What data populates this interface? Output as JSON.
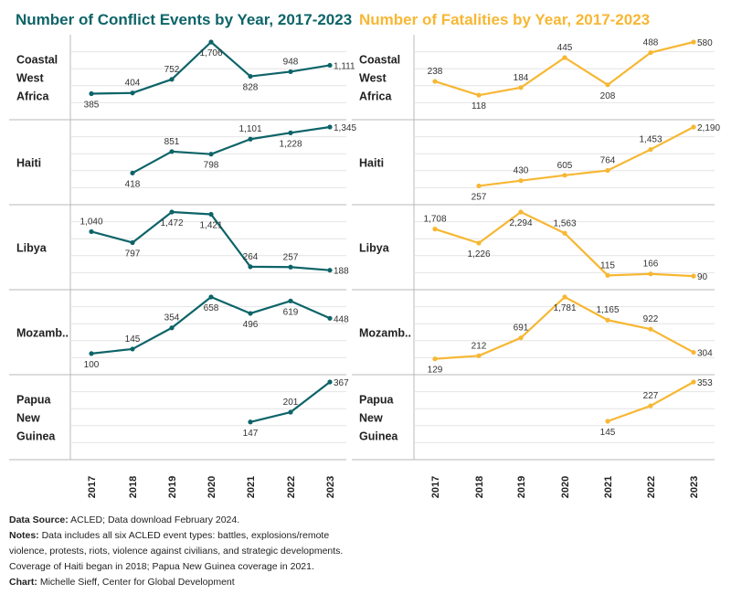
{
  "colors": {
    "events": "#0d6468",
    "fatalities": "#f7b733",
    "grid": "#e4e4e4",
    "divider": "#b8b8b8"
  },
  "chart_data": [
    {
      "type": "line",
      "title": "Number of Conflict Events by Year, 2017-2023",
      "x": [
        "2017",
        "2018",
        "2019",
        "2020",
        "2021",
        "2022",
        "2023"
      ],
      "series": [
        {
          "name": "Coastal West Africa",
          "values": [
            385,
            404,
            752,
            1706,
            828,
            948,
            1111
          ],
          "labels": [
            "385",
            "404",
            "752",
            "1,706",
            "828",
            "948",
            "1,111"
          ]
        },
        {
          "name": "Haiti",
          "values": [
            null,
            418,
            851,
            798,
            1101,
            1228,
            1345
          ],
          "labels": [
            "",
            "418",
            "851",
            "798",
            "1,101",
            "1,228",
            "1,345"
          ]
        },
        {
          "name": "Libya",
          "values": [
            1040,
            797,
            1472,
            1421,
            264,
            257,
            188
          ],
          "labels": [
            "1,040",
            "797",
            "1,472",
            "1,421",
            "264",
            "257",
            "188"
          ]
        },
        {
          "name": "Mozamb..",
          "values": [
            100,
            145,
            354,
            658,
            496,
            619,
            448
          ],
          "labels": [
            "100",
            "145",
            "354",
            "658",
            "496",
            "619",
            "448"
          ]
        },
        {
          "name": "Papua New Guinea",
          "values": [
            null,
            null,
            null,
            null,
            147,
            201,
            367
          ],
          "labels": [
            "",
            "",
            "",
            "",
            "147",
            "201",
            "367"
          ]
        }
      ]
    },
    {
      "type": "line",
      "title": "Number of Fatalities by Year, 2017-2023",
      "x": [
        "2017",
        "2018",
        "2019",
        "2020",
        "2021",
        "2022",
        "2023"
      ],
      "series": [
        {
          "name": "Coastal West Africa",
          "values": [
            238,
            118,
            184,
            445,
            208,
            488,
            580
          ],
          "labels": [
            "238",
            "118",
            "184",
            "445",
            "208",
            "488",
            "580"
          ]
        },
        {
          "name": "Haiti",
          "values": [
            null,
            257,
            430,
            605,
            764,
            1453,
            2190
          ],
          "labels": [
            "",
            "257",
            "430",
            "605",
            "764",
            "1,453",
            "2,190"
          ]
        },
        {
          "name": "Libya",
          "values": [
            1708,
            1226,
            2294,
            1563,
            115,
            166,
            90
          ],
          "labels": [
            "1,708",
            "1,226",
            "2,294",
            "1,563",
            "115",
            "166",
            "90"
          ]
        },
        {
          "name": "Mozamb..",
          "values": [
            129,
            212,
            691,
            1781,
            1165,
            922,
            304
          ],
          "labels": [
            "129",
            "212",
            "691",
            "1,781",
            "1,165",
            "922",
            "304"
          ]
        },
        {
          "name": "Papua New Guinea",
          "values": [
            null,
            null,
            null,
            null,
            145,
            227,
            353
          ],
          "labels": [
            "",
            "",
            "",
            "",
            "145",
            "227",
            "353"
          ]
        }
      ]
    }
  ],
  "footer": {
    "source_label": "Data Source:",
    "source_text": " ACLED; Data download February 2024.",
    "notes_label": "Notes:",
    "notes_line1": " Data includes all six ACLED event types: battles, explosions/remote",
    "notes_line2": "violence, protests, riots, violence against civilians, and strategic developments.",
    "notes_line3": "Coverage of Haiti began in 2018; Papua New Guinea coverage in 2021.",
    "chart_label": "Chart:",
    "chart_text": " Michelle Sieff, Center for Global Development"
  }
}
